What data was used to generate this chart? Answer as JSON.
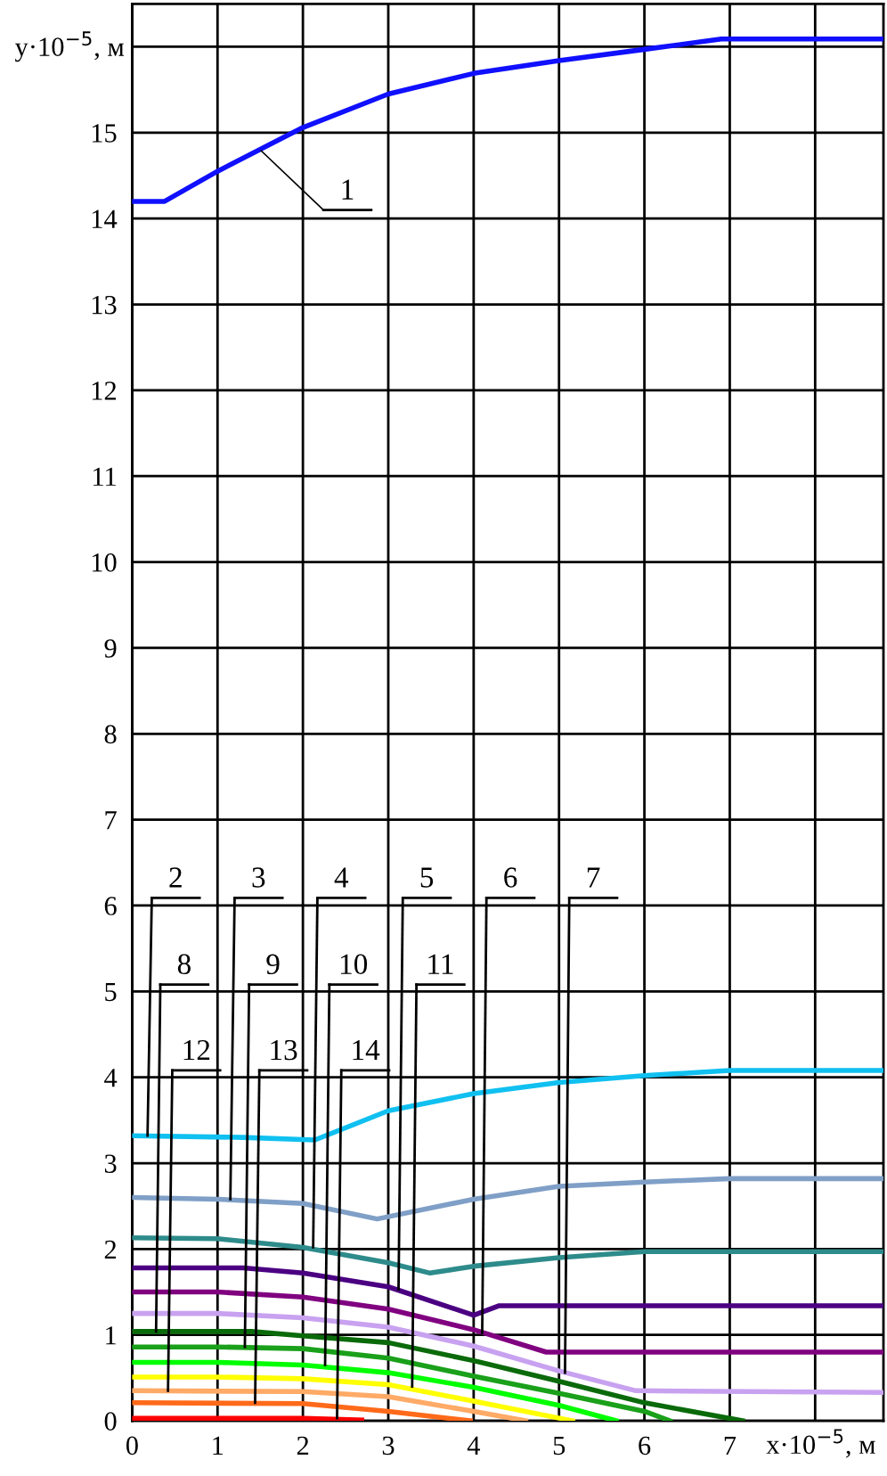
{
  "chart_data": {
    "type": "line",
    "xlabel": "x·10$^{−5}$, м",
    "ylabel": "y·10$^{−5}$, м",
    "xlim": [
      0,
      8.8
    ],
    "ylim": [
      0,
      16.5
    ],
    "xticks": [
      0,
      1,
      2,
      3,
      4,
      5,
      6,
      7,
      {
        "value": 8,
        "label": null
      }
    ],
    "yticks": [
      0,
      1,
      2,
      3,
      4,
      5,
      6,
      7,
      8,
      9,
      10,
      11,
      12,
      13,
      14,
      15,
      {
        "value": 16,
        "label": null
      }
    ],
    "grid": true,
    "line_style": "solid",
    "marker": "none",
    "series": [
      {
        "color": "#1010ff",
        "x": [
          0,
          0.38,
          1,
          2,
          3,
          4,
          5,
          6,
          6.9,
          8.8
        ],
        "values": [
          14.2,
          14.2,
          14.55,
          15.06,
          15.45,
          15.69,
          15.84,
          15.97,
          16.09,
          16.09
        ]
      },
      {
        "color": "#10c0f0",
        "x": [
          0,
          1.3,
          2.14,
          3,
          4,
          5,
          6,
          7,
          8.8
        ],
        "values": [
          3.32,
          3.3,
          3.27,
          3.61,
          3.81,
          3.94,
          4.02,
          4.08,
          4.08
        ]
      },
      {
        "color": "#7f9fc7",
        "x": [
          0,
          1,
          2,
          2.87,
          4,
          5,
          6,
          7,
          8.8
        ],
        "values": [
          2.6,
          2.58,
          2.53,
          2.35,
          2.58,
          2.73,
          2.78,
          2.82,
          2.82
        ]
      },
      {
        "color": "#2e8b8b",
        "x": [
          0,
          1,
          2,
          3,
          3.49,
          4,
          5,
          6,
          8.8
        ],
        "values": [
          2.13,
          2.12,
          2.02,
          1.84,
          1.72,
          1.8,
          1.9,
          1.97,
          1.97
        ]
      },
      {
        "color": "#4b0082",
        "x": [
          0,
          1.3,
          2,
          3,
          4,
          4.3,
          6,
          8.8
        ],
        "values": [
          1.78,
          1.78,
          1.72,
          1.56,
          1.23,
          1.34,
          1.34,
          1.34
        ]
      },
      {
        "color": "#800080",
        "x": [
          0,
          1,
          2,
          3,
          4,
          4.85,
          7,
          8.8
        ],
        "values": [
          1.5,
          1.5,
          1.44,
          1.3,
          1.06,
          0.8,
          0.8,
          0.8
        ]
      },
      {
        "color": "#c8a2f0",
        "x": [
          0,
          1,
          2,
          3,
          4,
          5,
          5.9,
          8.8
        ],
        "values": [
          1.25,
          1.25,
          1.2,
          1.09,
          0.87,
          0.58,
          0.35,
          0.33
        ]
      },
      {
        "color": "#0a6a0a",
        "x": [
          0,
          1.4,
          2,
          3,
          4,
          5,
          6,
          7.15
        ],
        "values": [
          1.04,
          1.04,
          0.99,
          0.91,
          0.7,
          0.46,
          0.21,
          0
        ]
      },
      {
        "color": "#1aa01a",
        "x": [
          0,
          1,
          2,
          3,
          4,
          5,
          6,
          6.3
        ],
        "values": [
          0.86,
          0.86,
          0.84,
          0.73,
          0.52,
          0.32,
          0.11,
          0
        ]
      },
      {
        "color": "#00ff00",
        "x": [
          0,
          1,
          2,
          3,
          4,
          5,
          5.67
        ],
        "values": [
          0.68,
          0.68,
          0.65,
          0.56,
          0.39,
          0.18,
          0
        ]
      },
      {
        "color": "#ffff00",
        "x": [
          0,
          1,
          2,
          3,
          4,
          5.16
        ],
        "values": [
          0.51,
          0.51,
          0.49,
          0.42,
          0.23,
          0
        ]
      },
      {
        "color": "#ffaa66",
        "x": [
          0,
          2,
          3,
          4,
          4.61
        ],
        "values": [
          0.35,
          0.34,
          0.28,
          0.11,
          0
        ]
      },
      {
        "color": "#ff6a1a",
        "x": [
          0,
          2,
          3,
          3.96
        ],
        "values": [
          0.21,
          0.2,
          0.11,
          0
        ]
      },
      {
        "color": "#ff0000",
        "x": [
          0,
          2,
          2.69
        ],
        "values": [
          0.03,
          0.03,
          0.01
        ]
      }
    ],
    "annotations": [
      {
        "text": "1",
        "x": 1.51,
        "y": 14.79
      },
      {
        "text": "2",
        "x": 0.18,
        "y": 3.32
      },
      {
        "text": "3",
        "x": 1.15,
        "y": 2.58
      },
      {
        "text": "4",
        "x": 2.12,
        "y": 2.02
      },
      {
        "text": "5",
        "x": 3.12,
        "y": 1.53
      },
      {
        "text": "6",
        "x": 4.1,
        "y": 1.02
      },
      {
        "text": "7",
        "x": 5.07,
        "y": 0.56
      },
      {
        "text": "8",
        "x": 0.28,
        "y": 1.04
      },
      {
        "text": "9",
        "x": 1.32,
        "y": 0.86
      },
      {
        "text": "10",
        "x": 2.26,
        "y": 0.65
      },
      {
        "text": "11",
        "x": 3.28,
        "y": 0.4
      },
      {
        "text": "12",
        "x": 0.42,
        "y": 0.35
      },
      {
        "text": "13",
        "x": 1.44,
        "y": 0.21
      },
      {
        "text": "14",
        "x": 2.4,
        "y": 0.03
      }
    ]
  }
}
